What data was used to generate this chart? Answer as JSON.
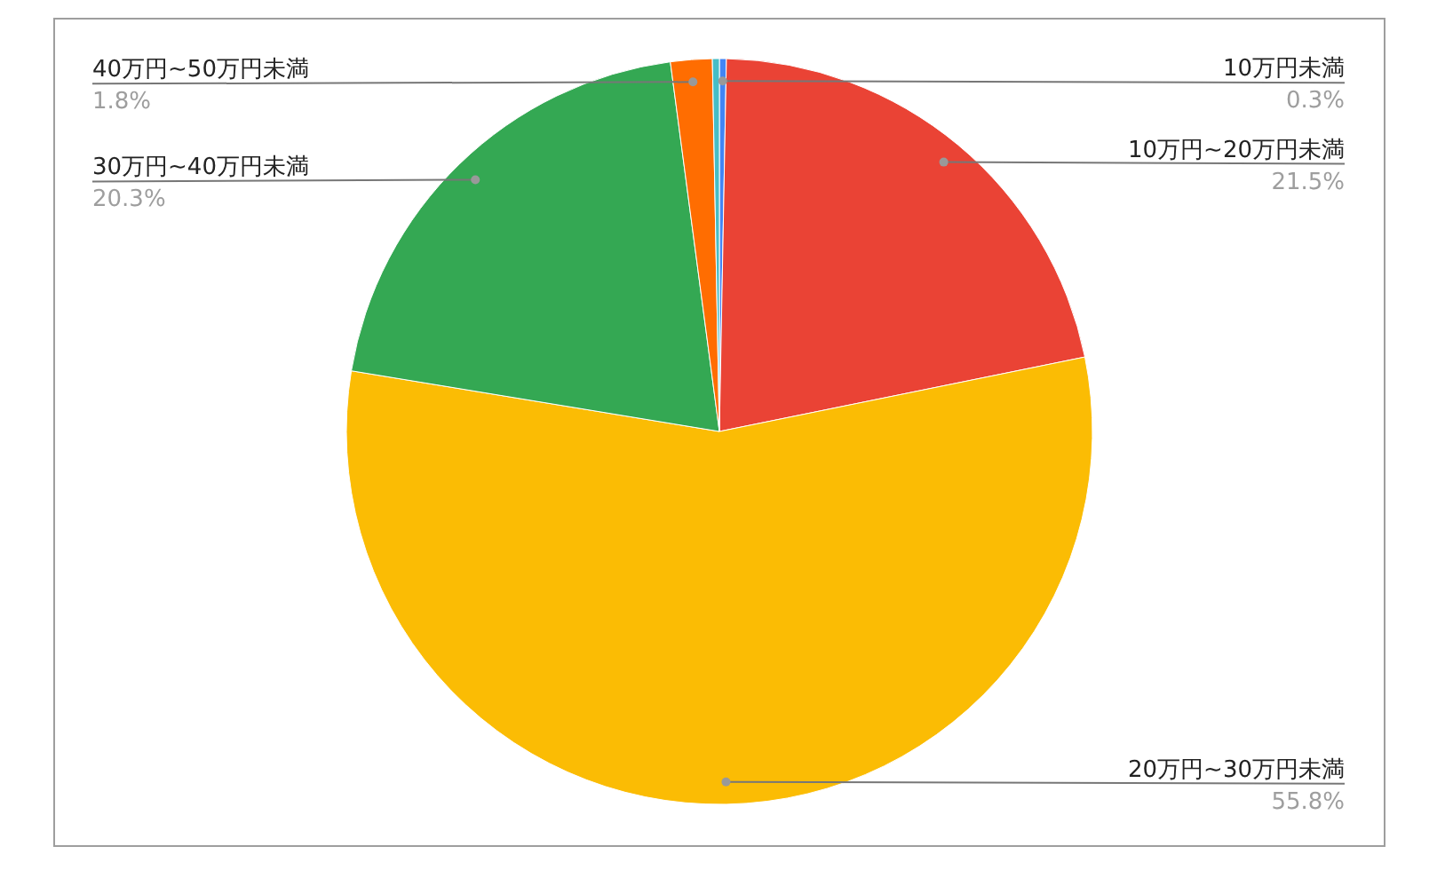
{
  "chart_data": {
    "type": "pie",
    "categories": [
      "10万円未満",
      "10万円~20万円未満",
      "20万円~30万円未満",
      "30万円~40万円未満",
      "40万円~50万円未満",
      null
    ],
    "values": [
      0.3,
      21.5,
      55.8,
      20.3,
      1.8,
      0.3
    ],
    "value_labels": [
      "0.3%",
      "21.5%",
      "55.8%",
      "20.3%",
      "1.8%",
      null
    ],
    "colors": [
      "#4285f4",
      "#ea4335",
      "#fbbc04",
      "#34a853",
      "#ff6d01",
      "#46bdc6"
    ],
    "legend": false
  }
}
